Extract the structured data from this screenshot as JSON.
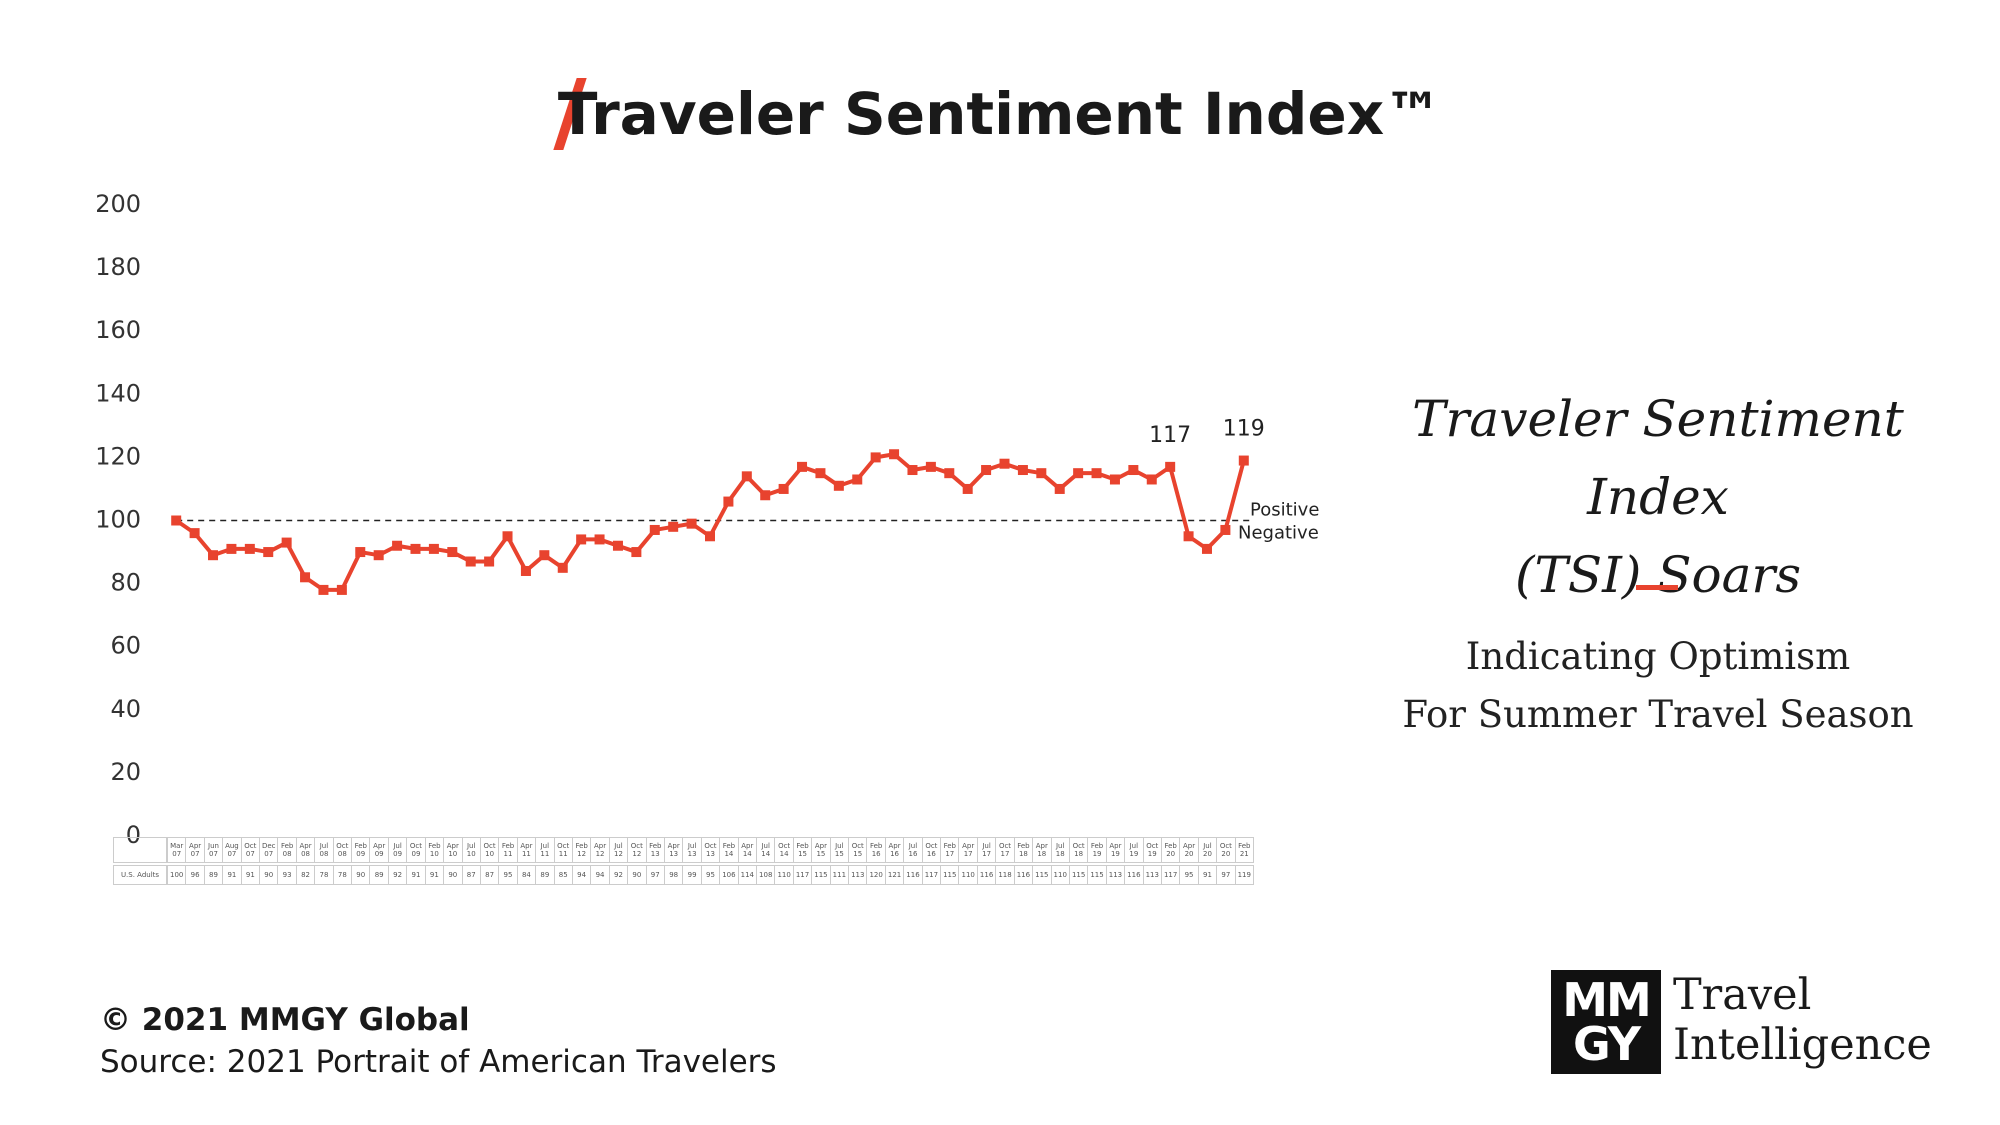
{
  "header": {
    "title": "Traveler Sentiment Index™"
  },
  "chart_data": {
    "type": "line",
    "categories": [
      "Mar 07",
      "Apr 07",
      "Jun 07",
      "Aug 07",
      "Oct 07",
      "Dec 07",
      "Feb 08",
      "Apr 08",
      "Jul 08",
      "Oct 08",
      "Feb 09",
      "Apr 09",
      "Jul 09",
      "Oct 09",
      "Feb 10",
      "Apr 10",
      "Jul 10",
      "Oct 10",
      "Feb 11",
      "Apr 11",
      "Jul 11",
      "Oct 11",
      "Feb 12",
      "Apr 12",
      "Jul 12",
      "Oct 12",
      "Feb 13",
      "Apr 13",
      "Jul 13",
      "Oct 13",
      "Feb 14",
      "Apr 14",
      "Jul 14",
      "Oct 14",
      "Feb 15",
      "Apr 15",
      "Jul 15",
      "Oct 15",
      "Feb 16",
      "Apr 16",
      "Jul 16",
      "Oct 16",
      "Feb 17",
      "Apr 17",
      "Jul 17",
      "Oct 17",
      "Feb 18",
      "Apr 18",
      "Jul 18",
      "Oct 18",
      "Feb 19",
      "Apr 19",
      "Jul 19",
      "Oct 19",
      "Feb 20",
      "Apr 20",
      "Jul 20",
      "Oct 20",
      "Feb 21"
    ],
    "series": [
      {
        "name": "U.S. Adults",
        "color": "#e8432e",
        "values": [
          100,
          96,
          89,
          91,
          91,
          90,
          93,
          82,
          78,
          78,
          90,
          89,
          92,
          91,
          91,
          90,
          87,
          87,
          95,
          84,
          89,
          85,
          94,
          94,
          92,
          90,
          97,
          98,
          99,
          95,
          106,
          114,
          108,
          110,
          117,
          115,
          111,
          113,
          120,
          121,
          116,
          117,
          115,
          110,
          116,
          118,
          116,
          115,
          110,
          115,
          115,
          113,
          116,
          113,
          117,
          95,
          91,
          97,
          119
        ]
      }
    ],
    "labeled_points": [
      54,
      58
    ],
    "reference_line": {
      "value": 100,
      "labels": [
        "Positive",
        "Negative"
      ]
    },
    "ylim": [
      0,
      200
    ],
    "yticks": [
      0,
      20,
      40,
      60,
      80,
      100,
      120,
      140,
      160,
      180,
      200
    ],
    "grid": false
  },
  "side_panel": {
    "headline": [
      "Traveler Sentiment Index",
      "(TSI) Soars"
    ],
    "text": [
      "Indicating Optimism",
      "For Summer Travel Season"
    ]
  },
  "footer": {
    "copyright": "© 2021 MMGY Global",
    "source": "Source: 2021 Portrait of American Travelers"
  },
  "logo": {
    "mark": [
      "MM",
      "GY"
    ],
    "text": [
      "Travel",
      "Intelligence"
    ]
  }
}
